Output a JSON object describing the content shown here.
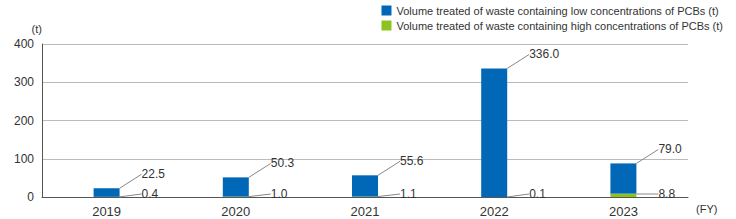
{
  "chart_data": {
    "type": "bar",
    "stacked": true,
    "data_labels": true,
    "grid": true,
    "legend": "top-right",
    "x_label": "(FY)",
    "y_label": "(t)",
    "categories": [
      "2019",
      "2020",
      "2021",
      "2022",
      "2023"
    ],
    "series": [
      {
        "name": "Volume treated of waste containing low concentrations of PCBs (t)",
        "color": "#0068b7",
        "values": [
          22.5,
          50.3,
          55.6,
          336.0,
          79.0
        ],
        "value_labels": [
          "22.5",
          "50.3",
          "55.6",
          "336.0",
          "79.0"
        ]
      },
      {
        "name": "Volume treated of waste containing high concentrations of PCBs (t)",
        "color": "#8dc21f",
        "values": [
          0.4,
          1.0,
          1.1,
          0.1,
          8.8
        ],
        "value_labels": [
          "0.4",
          "1.0",
          "1.1",
          "0.1",
          "8.8"
        ]
      }
    ],
    "ylim": [
      0,
      400
    ],
    "yticks": [
      0,
      100,
      200,
      300,
      400
    ]
  }
}
